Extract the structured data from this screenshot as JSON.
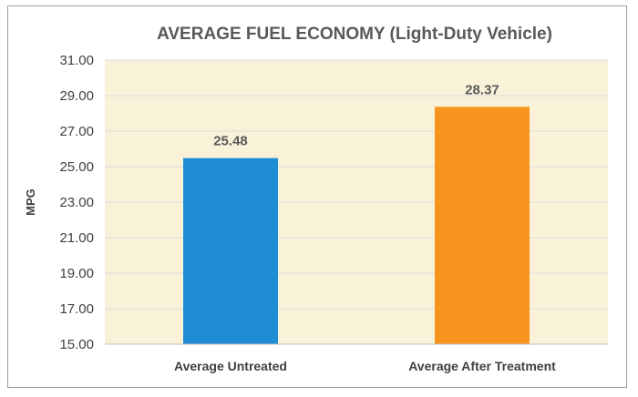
{
  "chart_data": {
    "type": "bar",
    "title": "AVERAGE FUEL ECONOMY (Light-Duty Vehicle)",
    "xlabel": "",
    "ylabel": "MPG",
    "categories": [
      "Average Untreated",
      "Average After Treatment"
    ],
    "values": [
      25.48,
      28.37
    ],
    "data_labels": [
      "25.48",
      "28.37"
    ],
    "colors": [
      "#1f8dd6",
      "#f7941d"
    ],
    "ylim": [
      15,
      31
    ],
    "yticks": [
      "15.00",
      "17.00",
      "19.00",
      "21.00",
      "23.00",
      "25.00",
      "27.00",
      "29.00",
      "31.00"
    ],
    "grid": true,
    "plot_background": "#f9f2d8",
    "grid_color": "#dcdcdc"
  }
}
